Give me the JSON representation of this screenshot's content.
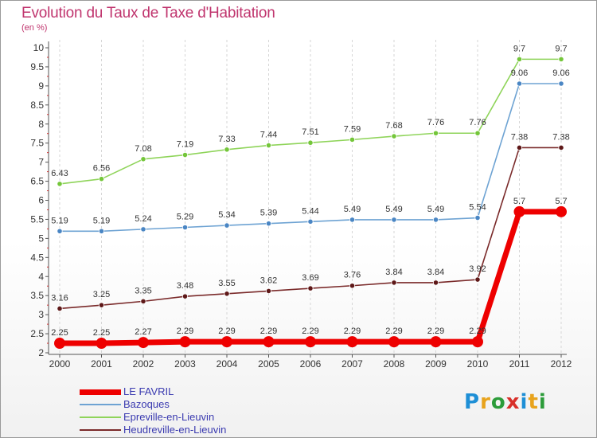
{
  "header": {
    "title": "Evolution du Taux de Taxe d'Habitation",
    "subtitle": "(en %)"
  },
  "logo": {
    "text": "Proxiti",
    "letters": [
      {
        "ch": "P",
        "color": "#1e8fd6"
      },
      {
        "ch": "r",
        "color": "#e8a31c"
      },
      {
        "ch": "o",
        "color": "#2c9c3a"
      },
      {
        "ch": "x",
        "color": "#d8302a"
      },
      {
        "ch": "i",
        "color": "#1e8fd6"
      },
      {
        "ch": "t",
        "color": "#e8a31c"
      },
      {
        "ch": "i",
        "color": "#2c9c3a"
      }
    ]
  },
  "chart_data": {
    "type": "line",
    "title": "Evolution du Taux de Taxe d'Habitation",
    "ylabel": "(en %)",
    "xlabel": "",
    "x": [
      "2000",
      "2001",
      "2002",
      "2003",
      "2004",
      "2005",
      "2006",
      "2007",
      "2008",
      "2009",
      "2010",
      "2011",
      "2012"
    ],
    "ylim": [
      2,
      10
    ],
    "yticks": [
      "2",
      "2.5",
      "3",
      "3.5",
      "4",
      "4.5",
      "5",
      "5.5",
      "6",
      "6.5",
      "7",
      "7.5",
      "8",
      "8.5",
      "9",
      "9.5",
      "10"
    ],
    "grid": "vertical dashed",
    "legend": "bottom-left",
    "series": [
      {
        "name": "Epreville-en-Lieuvin",
        "color": "#8fd45a",
        "marker": "#74c63a",
        "values": [
          6.43,
          6.56,
          7.08,
          7.19,
          7.33,
          7.44,
          7.51,
          7.59,
          7.68,
          7.76,
          7.76,
          9.7,
          9.7
        ],
        "labels": [
          "6.43",
          "6.56",
          "7.08",
          "7.19",
          "7.33",
          "7.44",
          "7.51",
          "7.59",
          "7.68",
          "7.76",
          "7.76",
          "9.7",
          "9.7"
        ]
      },
      {
        "name": "Bazoques",
        "color": "#6ea3d3",
        "marker": "#4a86c4",
        "values": [
          5.19,
          5.19,
          5.24,
          5.29,
          5.34,
          5.39,
          5.44,
          5.49,
          5.49,
          5.49,
          5.54,
          9.06,
          9.06
        ],
        "labels": [
          "5.19",
          "5.19",
          "5.24",
          "5.29",
          "5.34",
          "5.39",
          "5.44",
          "5.49",
          "5.49",
          "5.49",
          "5.54",
          "9.06",
          "9.06"
        ]
      },
      {
        "name": "Heudreville-en-Lieuvin",
        "color": "#7a2a2a",
        "marker": "#5e1818",
        "values": [
          3.16,
          3.25,
          3.35,
          3.48,
          3.55,
          3.62,
          3.69,
          3.76,
          3.84,
          3.84,
          3.92,
          7.38,
          7.38
        ],
        "labels": [
          "3.16",
          "3.25",
          "3.35",
          "3.48",
          "3.55",
          "3.62",
          "3.69",
          "3.76",
          "3.84",
          "3.84",
          "3.92",
          "7.38",
          "7.38"
        ]
      },
      {
        "name": "LE FAVRIL",
        "color": "#ee0000",
        "marker": "#ee0000",
        "values": [
          2.25,
          2.25,
          2.27,
          2.29,
          2.29,
          2.29,
          2.29,
          2.29,
          2.29,
          2.29,
          2.29,
          5.7,
          5.7
        ],
        "labels": [
          "2.25",
          "2.25",
          "2.27",
          "2.29",
          "2.29",
          "2.29",
          "2.29",
          "2.29",
          "2.29",
          "2.29",
          "2.29",
          "5.7",
          "5.7"
        ]
      }
    ]
  },
  "legend": [
    {
      "label": "LE FAVRIL",
      "color": "#ee0000",
      "thick": true
    },
    {
      "label": "Bazoques",
      "color": "#6ea3d3",
      "thick": false
    },
    {
      "label": "Epreville-en-Lieuvin",
      "color": "#8fd45a",
      "thick": false
    },
    {
      "label": "Heudreville-en-Lieuvin",
      "color": "#7a2a2a",
      "thick": false
    }
  ]
}
